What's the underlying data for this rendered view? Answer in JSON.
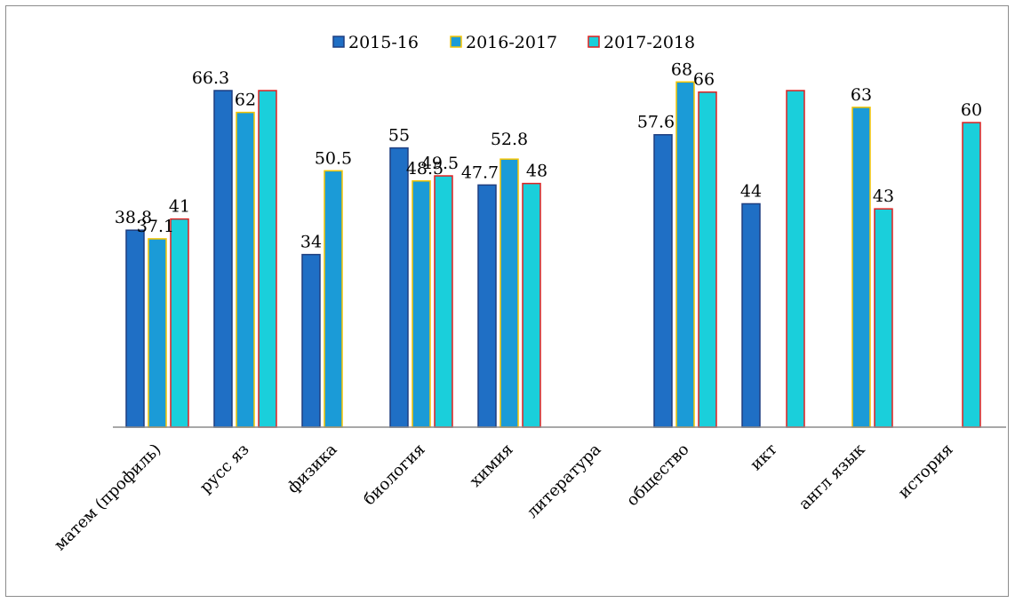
{
  "chart_data": {
    "type": "bar",
    "title": "",
    "xlabel": "",
    "ylabel": "",
    "ylim": [
      0,
      66.3
    ],
    "grid": false,
    "legend_position": "top",
    "categories": [
      "матем (профиль)",
      "русс яз",
      "физика",
      "биология",
      "химия",
      "литература",
      "общество",
      "икт",
      "англ язык",
      "история"
    ],
    "series": [
      {
        "name": "2015-16",
        "color": "#1F6FC5",
        "border": "#1F3F80",
        "values": [
          38.8,
          66.3,
          34,
          55,
          47.7,
          null,
          57.6,
          44,
          null,
          null
        ],
        "labels": [
          "38.8",
          "66.3",
          "34",
          "55",
          "47.7",
          null,
          "57.6",
          "44",
          null,
          null
        ]
      },
      {
        "name": "2016-2017",
        "color": "#1B9BD7",
        "border": "#F5C400",
        "values": [
          37.1,
          62,
          50.5,
          48.5,
          52.8,
          null,
          68,
          null,
          63,
          null
        ],
        "labels": [
          "37.1",
          "62",
          "50.5",
          "48.5",
          "52.8",
          null,
          "68",
          null,
          "63",
          null
        ]
      },
      {
        "name": "2017-2018",
        "color": "#1ACFDB",
        "border": "#E02020",
        "values": [
          41,
          66.3,
          null,
          49.5,
          48,
          null,
          66,
          66.3,
          43,
          60
        ],
        "labels": [
          "41",
          null,
          null,
          "49.5",
          "48",
          null,
          "66",
          null,
          "43",
          "60"
        ]
      }
    ]
  }
}
